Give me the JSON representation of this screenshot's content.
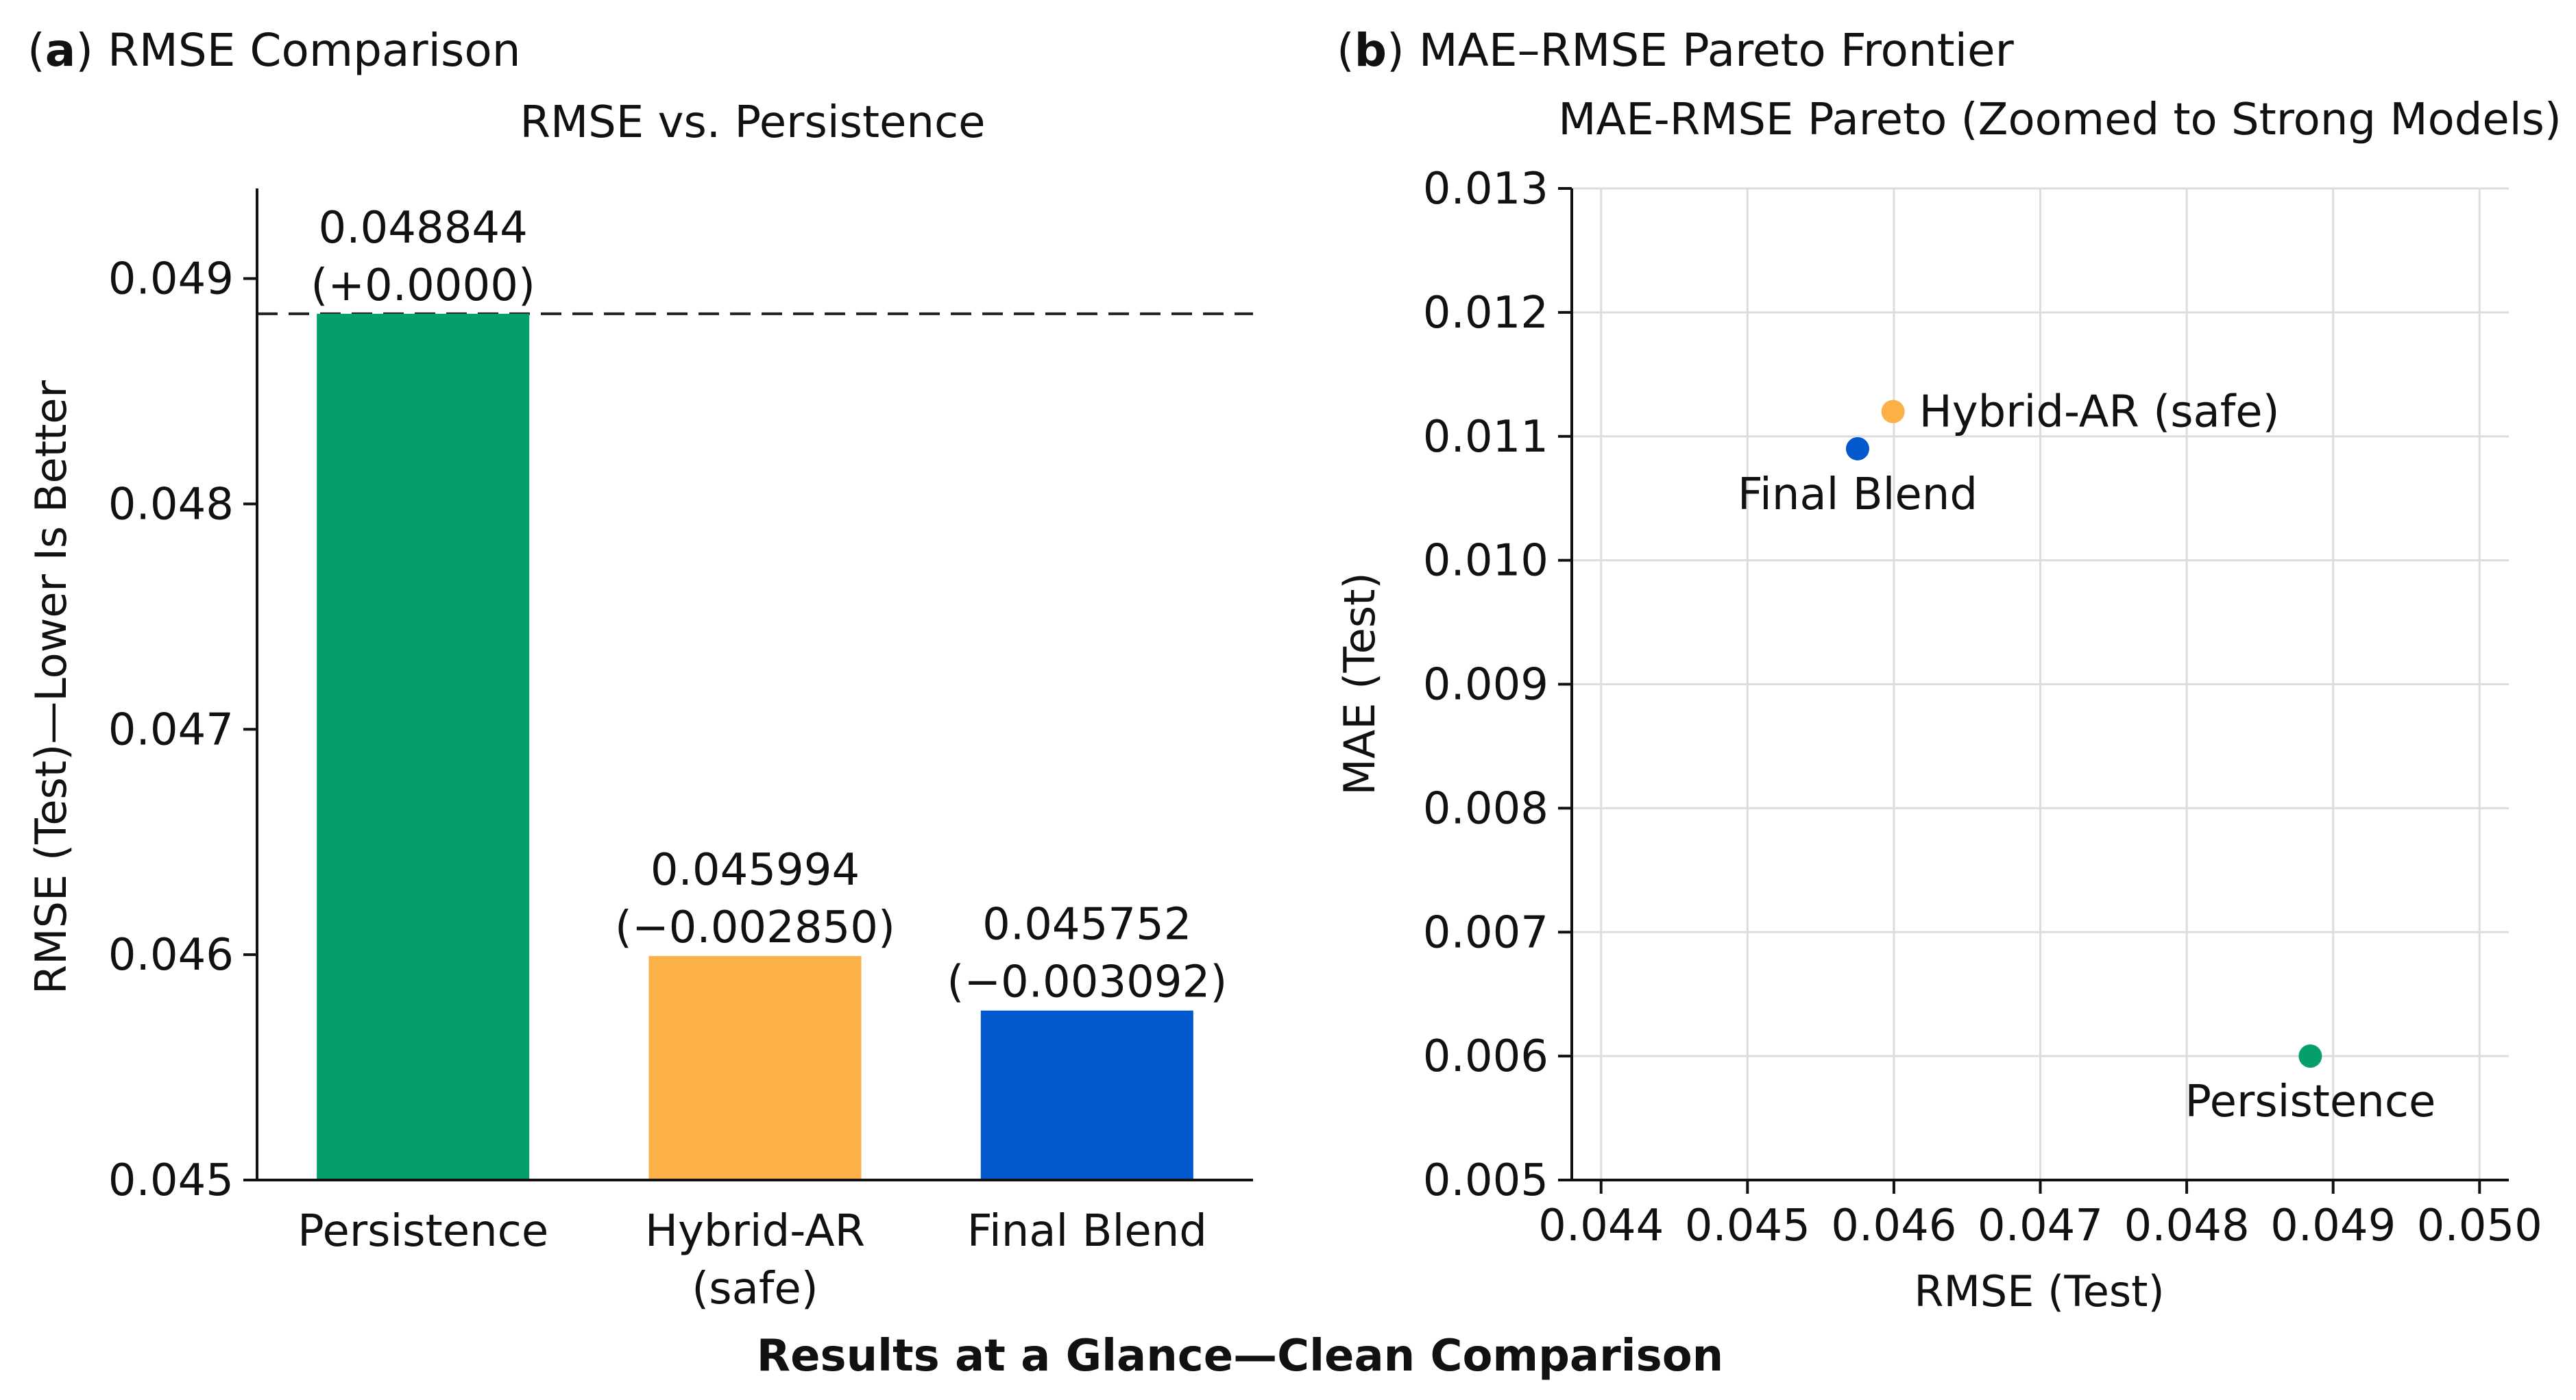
{
  "panels": {
    "a": {
      "letter": "a",
      "title": "RMSE Comparison"
    },
    "b": {
      "letter": "b",
      "title": "MAE–RMSE Pareto Frontier"
    }
  },
  "figure_caption": "Results at a Glance—Clean Comparison",
  "chart_data": [
    {
      "type": "bar",
      "title": "RMSE vs. Persistence",
      "xlabel": "",
      "ylabel": "RMSE (Test)—Lower Is Better",
      "categories": [
        [
          "Persistence"
        ],
        [
          "Hybrid-AR",
          "(safe)"
        ],
        [
          "Final Blend"
        ]
      ],
      "values": [
        0.048844,
        0.045994,
        0.045752
      ],
      "value_labels": [
        "0.048844",
        "0.045994",
        "0.045752"
      ],
      "delta_labels": [
        "(+0.0000)",
        "(−0.002850)",
        "(−0.003092)"
      ],
      "colors": [
        "#05a06a",
        "#fcb048",
        "#0159cd"
      ],
      "ylim": [
        0.045,
        0.0494
      ],
      "yticks": [
        0.045,
        0.046,
        0.047,
        0.048,
        0.049
      ],
      "ytick_labels": [
        "0.045",
        "0.046",
        "0.047",
        "0.048",
        "0.049"
      ],
      "reference_line": {
        "value": 0.048844,
        "style": "dashed"
      },
      "grid": false
    },
    {
      "type": "scatter",
      "title": "MAE-RMSE Pareto (Zoomed to Strong Models)",
      "xlabel": "RMSE (Test)",
      "ylabel": "MAE (Test)",
      "xlim": [
        0.0438,
        0.0502
      ],
      "ylim": [
        0.005,
        0.013
      ],
      "xticks": [
        0.044,
        0.045,
        0.046,
        0.047,
        0.048,
        0.049,
        0.05
      ],
      "xtick_labels": [
        "0.044",
        "0.045",
        "0.046",
        "0.047",
        "0.048",
        "0.049",
        "0.050"
      ],
      "yticks": [
        0.005,
        0.006,
        0.007,
        0.008,
        0.009,
        0.01,
        0.011,
        0.012,
        0.013
      ],
      "ytick_labels": [
        "0.005",
        "0.006",
        "0.007",
        "0.008",
        "0.009",
        "0.010",
        "0.011",
        "0.012",
        "0.013"
      ],
      "grid": true,
      "points": [
        {
          "name": "Hybrid-AR (safe)",
          "x": 0.045994,
          "y": 0.0112,
          "color": "#fcb048",
          "label_position": "right"
        },
        {
          "name": "Final Blend",
          "x": 0.045752,
          "y": 0.0109,
          "color": "#0159cd",
          "label_position": "below"
        },
        {
          "name": "Persistence",
          "x": 0.048844,
          "y": 0.006,
          "color": "#05a06a",
          "label_position": "below"
        }
      ]
    }
  ]
}
